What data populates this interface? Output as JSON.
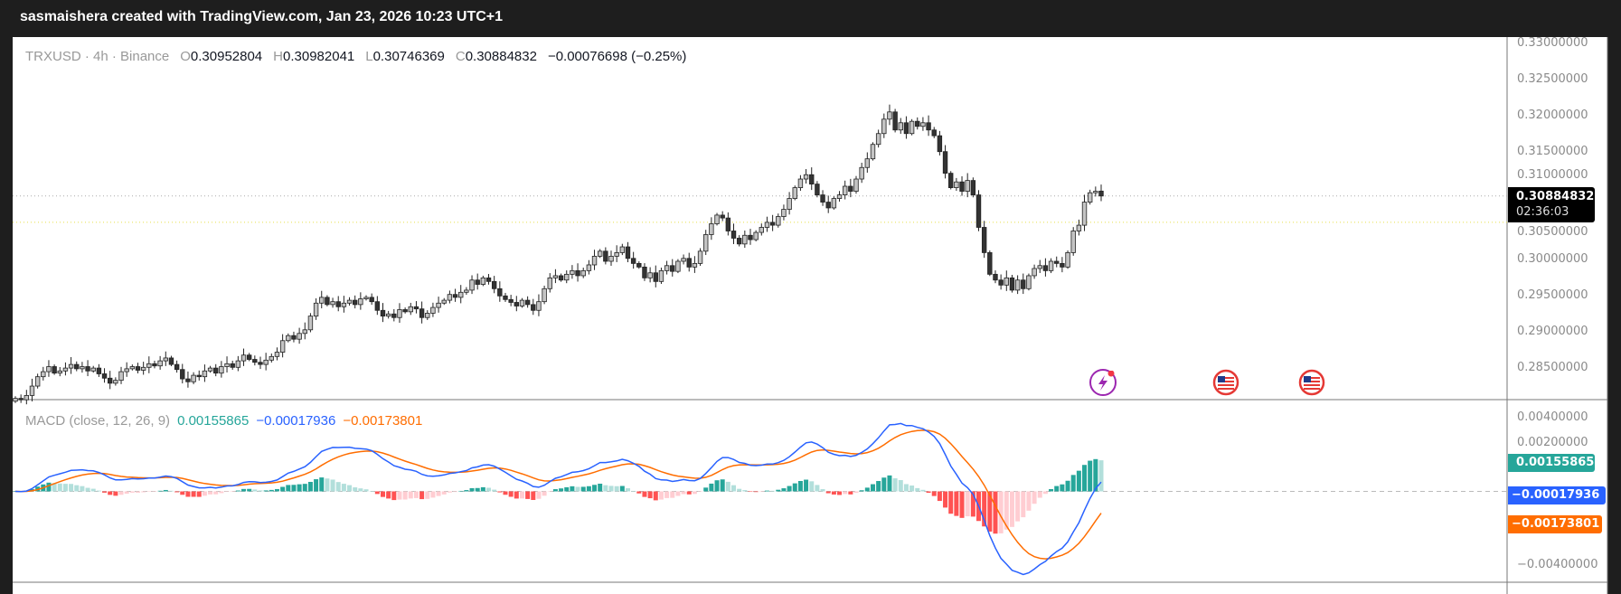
{
  "header": {
    "title": "sasmaishera created with TradingView.com, Jan 23, 2026 10:23 UTC+1"
  },
  "legend": {
    "symbol": "TRXUSD · 4h · Binance",
    "open_label": "O",
    "open": "0.30952804",
    "high_label": "H",
    "high": "0.30982041",
    "low_label": "L",
    "low": "0.30746369",
    "close_label": "C",
    "close": "0.30884832",
    "change": "−0.00076698 (−0.25%)"
  },
  "price_axis": {
    "ticks": [
      "0.33000000",
      "0.32500000",
      "0.32000000",
      "0.31500000",
      "0.31000000",
      "0.30500000",
      "0.30000000",
      "0.29500000",
      "0.29000000",
      "0.28500000"
    ],
    "current_price": "0.30884832",
    "countdown": "02:36:03"
  },
  "macd": {
    "title": "MACD (close, 12, 26, 9)",
    "histogram": "0.00155865",
    "macd": "−0.00017936",
    "signal": "−0.00173801",
    "axis_ticks": [
      "0.00400000",
      "0.00200000",
      "−0.00400000"
    ],
    "colors": {
      "macd": "#2962ff",
      "signal": "#ff6d00",
      "hist_up": "#26a69a",
      "hist_up_weak": "#b2dfdb",
      "hist_down": "#ff5252",
      "hist_down_weak": "#ffcdd2"
    }
  },
  "events": [
    {
      "icon": "lightning-icon",
      "color": "#9c27b0"
    },
    {
      "icon": "us-flag-icon"
    },
    {
      "icon": "us-flag-icon"
    }
  ],
  "chart_data": {
    "type": "candlestick",
    "symbol": "TRXUSD",
    "interval": "4h",
    "ylim": [
      0.2805,
      0.3305
    ],
    "last_open": 0.30952804,
    "last_close": 0.30884832,
    "closes": [
      0.2808,
      0.2806,
      0.2812,
      0.2825,
      0.2838,
      0.2845,
      0.2852,
      0.2843,
      0.2846,
      0.285,
      0.2855,
      0.2849,
      0.2852,
      0.2846,
      0.285,
      0.2842,
      0.2836,
      0.2829,
      0.2833,
      0.2845,
      0.2849,
      0.2852,
      0.2847,
      0.2851,
      0.2856,
      0.2853,
      0.286,
      0.2864,
      0.2855,
      0.2848,
      0.2835,
      0.2831,
      0.284,
      0.2838,
      0.2846,
      0.285,
      0.2843,
      0.2852,
      0.2856,
      0.2851,
      0.286,
      0.2868,
      0.2862,
      0.2858,
      0.2855,
      0.2861,
      0.2866,
      0.2872,
      0.2888,
      0.2895,
      0.289,
      0.2898,
      0.2903,
      0.2922,
      0.294,
      0.2948,
      0.2938,
      0.2942,
      0.2935,
      0.294,
      0.2944,
      0.2938,
      0.2946,
      0.2948,
      0.2942,
      0.293,
      0.2922,
      0.2925,
      0.292,
      0.2931,
      0.2928,
      0.2935,
      0.2932,
      0.292,
      0.2926,
      0.2934,
      0.294,
      0.2944,
      0.2952,
      0.2948,
      0.2955,
      0.2958,
      0.2972,
      0.2966,
      0.2975,
      0.297,
      0.296,
      0.295,
      0.2945,
      0.2941,
      0.2936,
      0.2944,
      0.2938,
      0.293,
      0.2942,
      0.296,
      0.2975,
      0.2978,
      0.2972,
      0.298,
      0.2985,
      0.2978,
      0.2985,
      0.2993,
      0.3005,
      0.3012,
      0.2998,
      0.3005,
      0.301,
      0.3018,
      0.3002,
      0.2995,
      0.299,
      0.2975,
      0.2982,
      0.297,
      0.2985,
      0.2992,
      0.2984,
      0.2998,
      0.3002,
      0.299,
      0.2995,
      0.3012,
      0.3035,
      0.305,
      0.3062,
      0.3058,
      0.304,
      0.303,
      0.3022,
      0.3034,
      0.3028,
      0.3038,
      0.3045,
      0.3052,
      0.3048,
      0.306,
      0.307,
      0.3085,
      0.31,
      0.3112,
      0.3118,
      0.3105,
      0.309,
      0.308,
      0.3072,
      0.3085,
      0.309,
      0.3102,
      0.3095,
      0.3112,
      0.3128,
      0.314,
      0.316,
      0.3175,
      0.3195,
      0.3205,
      0.318,
      0.319,
      0.3175,
      0.3192,
      0.3185,
      0.319,
      0.318,
      0.3172,
      0.315,
      0.312,
      0.31,
      0.3108,
      0.3095,
      0.311,
      0.309,
      0.3045,
      0.301,
      0.298,
      0.2972,
      0.2965,
      0.2975,
      0.2958,
      0.2972,
      0.296,
      0.2978,
      0.2988,
      0.2992,
      0.2985,
      0.2998,
      0.2995,
      0.299,
      0.301,
      0.304,
      0.3048,
      0.308,
      0.3093,
      0.3095,
      0.30884832
    ]
  }
}
